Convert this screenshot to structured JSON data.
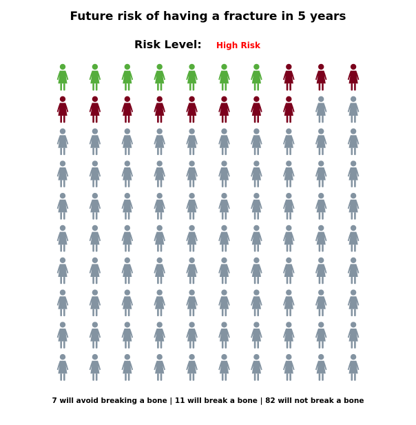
{
  "chart_data": {
    "type": "pictogram",
    "title": "Future risk of having a fracture in 5 years",
    "risk_label": "Risk Level:",
    "risk_value": "High Risk",
    "rows": 10,
    "cols": 10,
    "categories": [
      {
        "key": "avoid",
        "count": 7,
        "color": "#55ad3c"
      },
      {
        "key": "break",
        "count": 11,
        "color": "#7b001c"
      },
      {
        "key": "none",
        "count": 82,
        "color": "#8393a1"
      }
    ],
    "footer": "7 will avoid breaking a bone | 11 will break a bone | 82 will not break a bone"
  },
  "colors": {
    "risk_value": "#ff0000"
  },
  "icon": "woman-icon"
}
